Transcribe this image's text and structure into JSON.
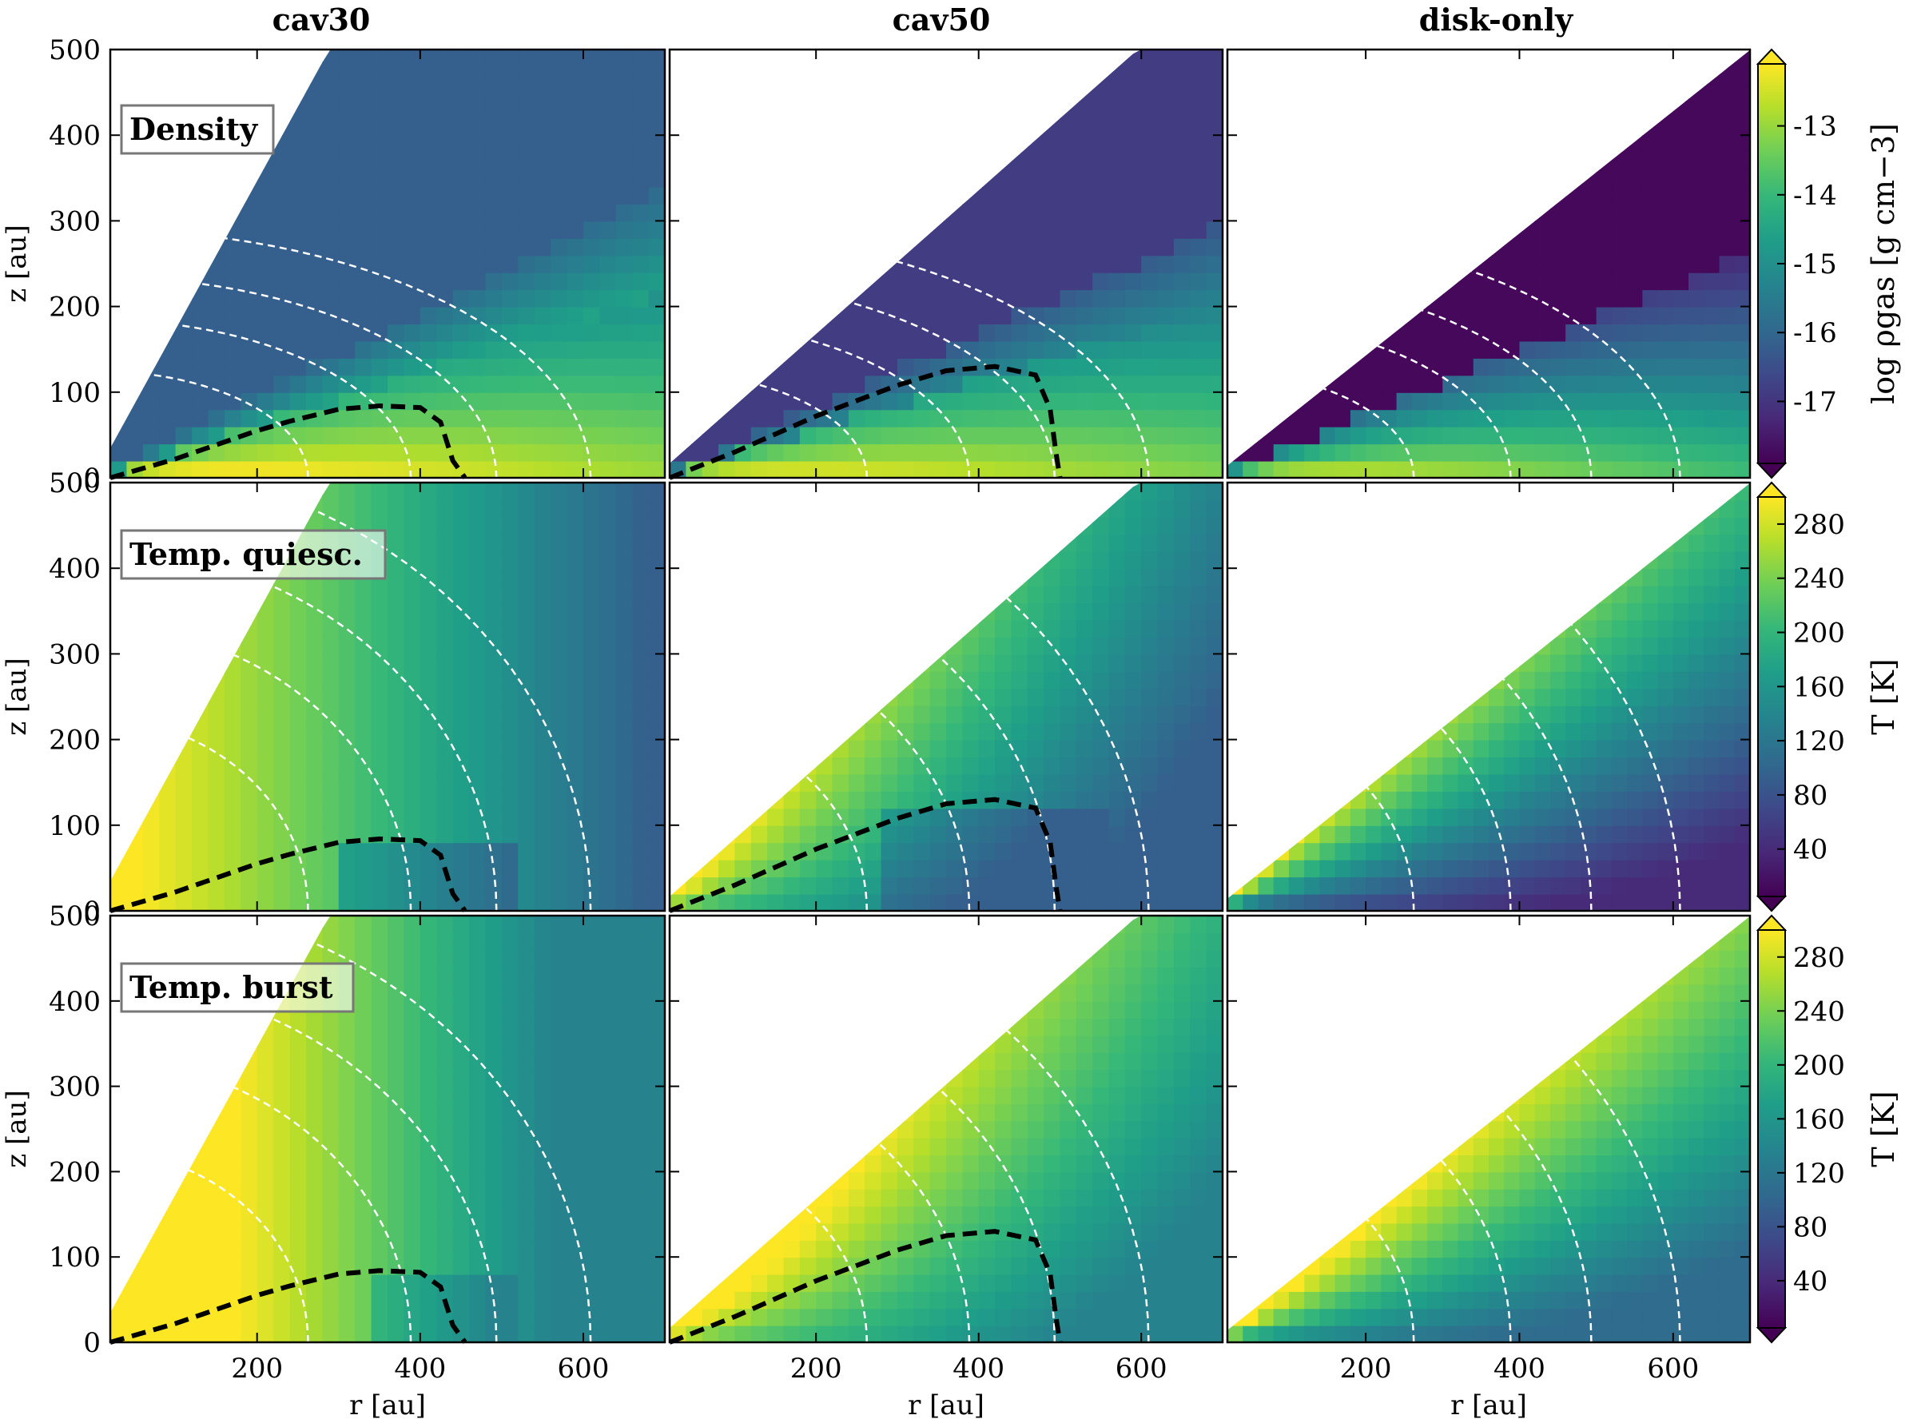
{
  "chart_data": {
    "type": "heatmap",
    "description_columns": [
      "cav30",
      "cav50",
      "disk-only"
    ],
    "columns": [
      "cav30",
      "cav50",
      "disk-only"
    ],
    "rows": [
      {
        "label": "Density",
        "quantity": "log rho_gas",
        "colorbar_label": "log ρgas [g cm−3]",
        "colorbar_ticks": [
          -13,
          -14,
          -15,
          -16,
          -17
        ],
        "vmin": -17.9,
        "vmax": -12.1
      },
      {
        "label": "Temp. quiesc.",
        "quantity": "T",
        "colorbar_label": "T [K]",
        "colorbar_ticks": [
          280,
          240,
          200,
          160,
          120,
          80,
          40
        ],
        "vmin": 5,
        "vmax": 300
      },
      {
        "label": "Temp. burst",
        "quantity": "T",
        "colorbar_label": "T [K]",
        "colorbar_ticks": [
          280,
          240,
          200,
          160,
          120,
          80,
          40
        ],
        "vmin": 5,
        "vmax": 300
      }
    ],
    "xlabel": "r [au]",
    "ylabel": "z [au]",
    "xlim": [
      20,
      700
    ],
    "ylim": [
      0,
      500
    ],
    "xticks": [
      200,
      400,
      600
    ],
    "yticks": [
      0,
      100,
      200,
      300,
      400,
      500
    ],
    "colormap": "viridis",
    "cavity_opening_angle_deg": {
      "cav30": 60,
      "cav50": 40,
      "disk-only": 35.5
    },
    "black_dashed_boundary": {
      "cav30": [
        [
          20,
          0
        ],
        [
          100,
          22
        ],
        [
          200,
          55
        ],
        [
          240,
          66
        ],
        [
          300,
          80
        ],
        [
          350,
          84
        ],
        [
          400,
          82
        ],
        [
          425,
          65
        ],
        [
          440,
          20
        ],
        [
          455,
          0
        ]
      ],
      "cav50": [
        [
          20,
          0
        ],
        [
          100,
          30
        ],
        [
          200,
          72
        ],
        [
          300,
          108
        ],
        [
          360,
          125
        ],
        [
          420,
          130
        ],
        [
          470,
          120
        ],
        [
          488,
          80
        ],
        [
          495,
          30
        ],
        [
          500,
          0
        ]
      ],
      "disk-only": []
    }
  },
  "colors": {
    "viridis": [
      "#440154",
      "#482878",
      "#3e4989",
      "#31688e",
      "#26828e",
      "#1f9e89",
      "#35b779",
      "#6ece58",
      "#b5de2b",
      "#fde725"
    ],
    "contour": "#ffffff",
    "boundary": "#000000",
    "label_box_border": "#777777"
  }
}
